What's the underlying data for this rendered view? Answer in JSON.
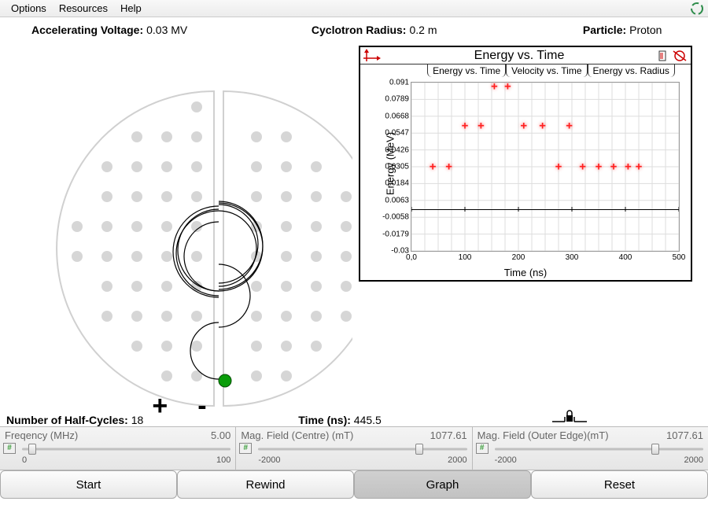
{
  "menu": {
    "options": "Options",
    "resources": "Resources",
    "help": "Help"
  },
  "info": {
    "voltage_label": "Accelerating Voltage:",
    "voltage_value": "0.03 MV",
    "radius_label": "Cyclotron Radius:",
    "radius_value": "0.2 m",
    "particle_label": "Particle:",
    "particle_value": "Proton"
  },
  "cyclotron": {
    "plus": "+",
    "minus": "-",
    "particle_color": "#0a9d0a",
    "dee_fill": "#ffffff",
    "dee_stroke": "#d0d0d0",
    "dot_fill": "#d6d6d6",
    "trajectory_stroke": "#000000",
    "particle_x": 278,
    "particle_y": 438
  },
  "chart": {
    "title": "Energy vs. Time",
    "tabs": [
      "Energy vs. Time",
      "Velocity vs. Time",
      "Energy vs. Radius"
    ],
    "active_tab": 0,
    "y_label": "Energy (MeV)",
    "x_label": "Time (ns)",
    "y_min": -0.03,
    "y_max": 0.091,
    "y_ticks": [
      0.091,
      0.0789,
      0.0668,
      0.0547,
      0.0426,
      0.0305,
      0.0184,
      0.0063,
      -0.0058,
      -0.0179,
      -0.03
    ],
    "x_min": 0,
    "x_max": 500,
    "x_ticks": [
      0,
      100,
      200,
      300,
      400,
      500
    ],
    "grid_color": "#dddddd",
    "point_color": "#ff2020",
    "points": [
      {
        "x": 40,
        "y": 0.0305
      },
      {
        "x": 70,
        "y": 0.0305
      },
      {
        "x": 100,
        "y": 0.06
      },
      {
        "x": 130,
        "y": 0.06
      },
      {
        "x": 155,
        "y": 0.088
      },
      {
        "x": 180,
        "y": 0.088
      },
      {
        "x": 210,
        "y": 0.06
      },
      {
        "x": 245,
        "y": 0.06
      },
      {
        "x": 275,
        "y": 0.0305
      },
      {
        "x": 295,
        "y": 0.06
      },
      {
        "x": 320,
        "y": 0.0305
      },
      {
        "x": 350,
        "y": 0.0305
      },
      {
        "x": 378,
        "y": 0.0305
      },
      {
        "x": 405,
        "y": 0.0305
      },
      {
        "x": 425,
        "y": 0.0305
      }
    ]
  },
  "readouts": {
    "half_cycles_label": "Number of Half-Cycles:",
    "half_cycles_value": "18",
    "time_label": "Time (ns):",
    "time_value": "445.5"
  },
  "sliders": {
    "freq": {
      "label": "Freqency (MHz)",
      "value": "5.00",
      "min": "0",
      "max": "100",
      "frac": 0.05
    },
    "bcentre": {
      "label": "Mag. Field (Centre) (mT)",
      "value": "1077.61",
      "min": "-2000",
      "max": "2000",
      "frac": 0.77
    },
    "bedge": {
      "label": "Mag. Field (Outer Edge)(mT)",
      "value": "1077.61",
      "min": "-2000",
      "max": "2000",
      "frac": 0.77
    }
  },
  "buttons": {
    "start": "Start",
    "rewind": "Rewind",
    "graph": "Graph",
    "reset": "Reset"
  }
}
